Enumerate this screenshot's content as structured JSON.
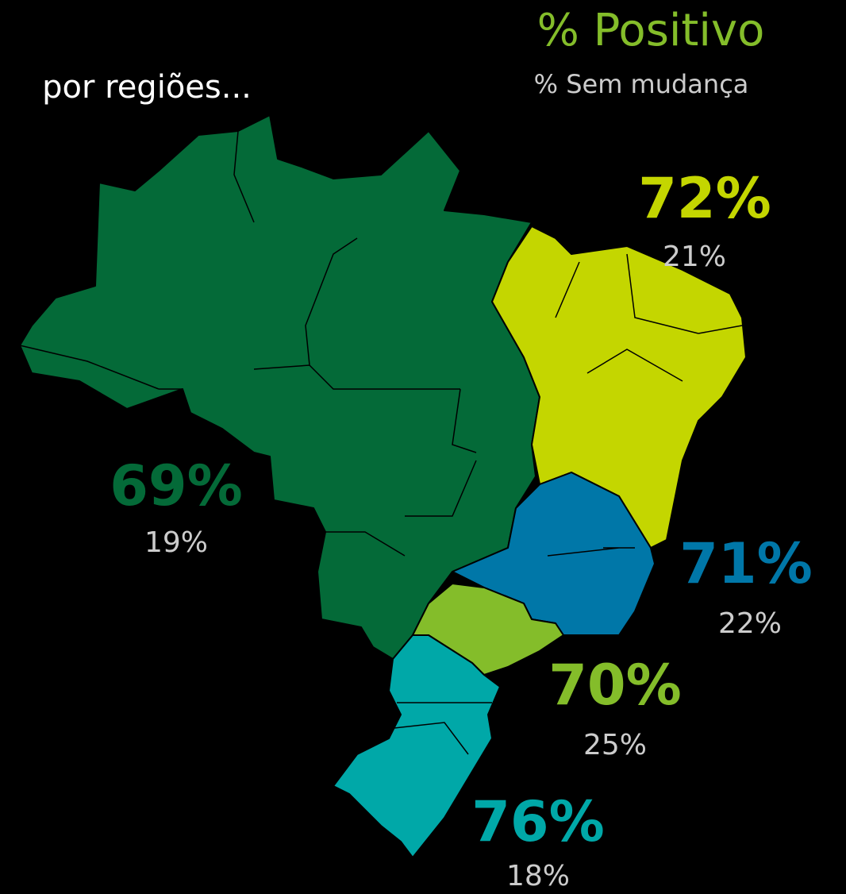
{
  "header": {
    "title": "por regiões...",
    "legend_positive": "% Positivo",
    "legend_no_change": "% Sem mudança"
  },
  "regions": [
    {
      "positive": "69%",
      "no_change": "19%",
      "color": "#046a38"
    },
    {
      "positive": "72%",
      "no_change": "21%",
      "color": "#c4d600"
    },
    {
      "positive": "71%",
      "no_change": "22%",
      "color": "#0077a8"
    },
    {
      "positive": "70%",
      "no_change": "25%",
      "color": "#84bd2a"
    },
    {
      "positive": "76%",
      "no_change": "18%",
      "color": "#00a8a8"
    }
  ]
}
